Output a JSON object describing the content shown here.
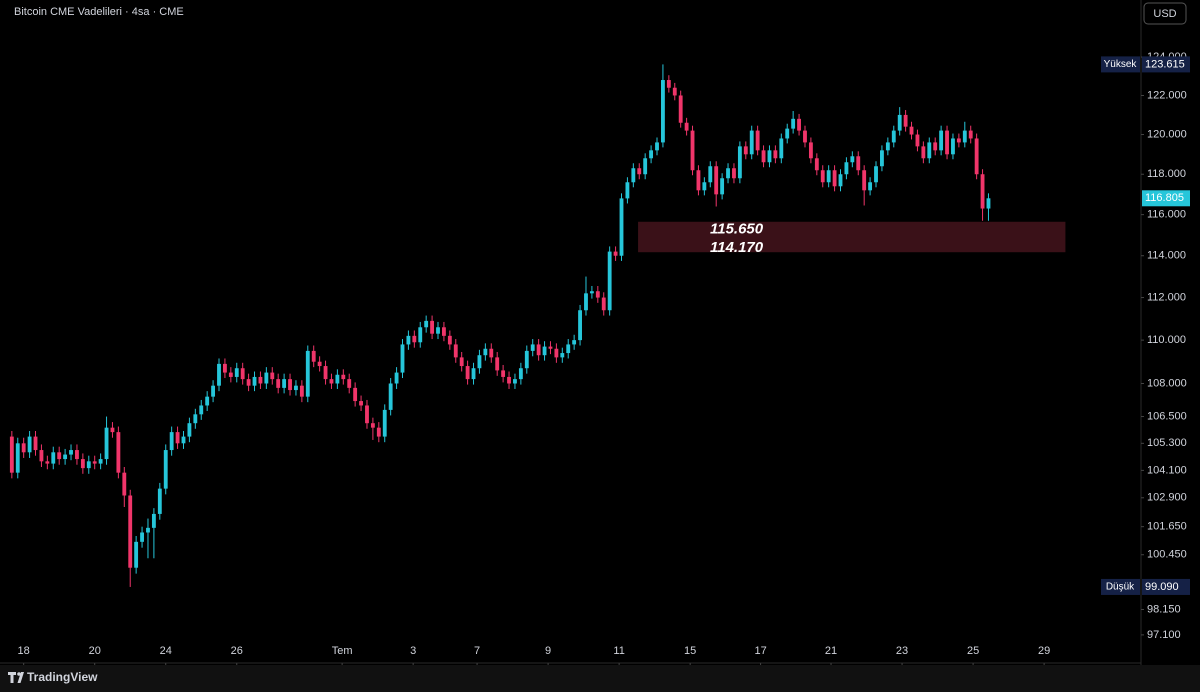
{
  "chart_data": {
    "type": "candlestick",
    "title": "Bitcoin CME Vadelileri · 4sa · CME",
    "currency": "USD",
    "brand": "TradingView",
    "log_scale": true,
    "grid": false,
    "up_color": "#26c6da",
    "down_color": "#f0356a",
    "ylim": [
      96890,
      127030
    ],
    "yticks": [
      {
        "value": 97100,
        "label": "97.100"
      },
      {
        "value": 98150,
        "label": "98.150"
      },
      {
        "value": 100450,
        "label": "100.450"
      },
      {
        "value": 101650,
        "label": "101.650"
      },
      {
        "value": 102900,
        "label": "102.900"
      },
      {
        "value": 104100,
        "label": "104.100"
      },
      {
        "value": 105300,
        "label": "105.300"
      },
      {
        "value": 106500,
        "label": "106.500"
      },
      {
        "value": 108000,
        "label": "108.000"
      },
      {
        "value": 110000,
        "label": "110.000"
      },
      {
        "value": 112000,
        "label": "112.000"
      },
      {
        "value": 114000,
        "label": "114.000"
      },
      {
        "value": 116000,
        "label": "116.000"
      },
      {
        "value": 118000,
        "label": "118.000"
      },
      {
        "value": 120000,
        "label": "120.000"
      },
      {
        "value": 122000,
        "label": "122.000"
      },
      {
        "value": 124000,
        "label": "124.000"
      }
    ],
    "xlim": [
      -2,
      190.6
    ],
    "xticks": [
      {
        "value": 2,
        "label": "18"
      },
      {
        "value": 14,
        "label": "20"
      },
      {
        "value": 26,
        "label": "24"
      },
      {
        "value": 38,
        "label": "26"
      },
      {
        "value": 55.8,
        "label": "Tem"
      },
      {
        "value": 67.8,
        "label": "3"
      },
      {
        "value": 78.6,
        "label": "7"
      },
      {
        "value": 90.6,
        "label": "9"
      },
      {
        "value": 102.6,
        "label": "11"
      },
      {
        "value": 114.6,
        "label": "15"
      },
      {
        "value": 126.5,
        "label": "17"
      },
      {
        "value": 138.4,
        "label": "21"
      },
      {
        "value": 150.4,
        "label": "23"
      },
      {
        "value": 162.4,
        "label": "25"
      },
      {
        "value": 174.4,
        "label": "29"
      }
    ],
    "high": {
      "label": "Yüksek",
      "value": 123615,
      "value_label": "123.615"
    },
    "low": {
      "label": "Düşük",
      "value": 99090,
      "value_label": "99.090"
    },
    "last": {
      "value": 116805,
      "value_label": "116.805"
    },
    "zone": {
      "top": 115650,
      "bottom": 114170,
      "x_range": [
        105.8,
        178
      ],
      "top_label": "115.650",
      "bottom_label": "114.170",
      "color": "#3a1118"
    },
    "candles": [
      [
        105600,
        105850,
        103750,
        104000
      ],
      [
        104000,
        105550,
        103750,
        105300
      ],
      [
        105300,
        105550,
        104650,
        104900
      ],
      [
        104900,
        105850,
        104650,
        105600
      ],
      [
        105600,
        105850,
        104750,
        105000
      ],
      [
        105000,
        105250,
        104250,
        104500
      ],
      [
        104500,
        104750,
        104150,
        104400
      ],
      [
        104400,
        105150,
        104150,
        104900
      ],
      [
        104900,
        105150,
        104350,
        104600
      ],
      [
        104600,
        105050,
        104350,
        104800
      ],
      [
        104800,
        105250,
        104550,
        105000
      ],
      [
        105000,
        105250,
        104350,
        104600
      ],
      [
        104600,
        104850,
        103950,
        104200
      ],
      [
        104200,
        104750,
        103950,
        104500
      ],
      [
        104500,
        104750,
        104150,
        104400
      ],
      [
        104400,
        104850,
        104150,
        104600
      ],
      [
        104600,
        106500,
        104350,
        106000
      ],
      [
        106000,
        106250,
        105550,
        105800
      ],
      [
        105800,
        106050,
        103750,
        104000
      ],
      [
        104000,
        104250,
        102500,
        103000
      ],
      [
        103000,
        103250,
        99090,
        99900
      ],
      [
        99900,
        101250,
        99650,
        101000
      ],
      [
        101000,
        101650,
        100750,
        101400
      ],
      [
        101400,
        102000,
        100300,
        101600
      ],
      [
        101600,
        102450,
        100300,
        102200
      ],
      [
        102200,
        103550,
        101950,
        103300
      ],
      [
        103300,
        105250,
        103050,
        105000
      ],
      [
        105000,
        106050,
        104750,
        105800
      ],
      [
        105800,
        106050,
        105050,
        105300
      ],
      [
        105300,
        105850,
        105050,
        105600
      ],
      [
        105600,
        106450,
        105350,
        106200
      ],
      [
        106200,
        106850,
        105950,
        106600
      ],
      [
        106600,
        107250,
        106350,
        107000
      ],
      [
        107000,
        107650,
        106750,
        107400
      ],
      [
        107400,
        108150,
        107150,
        107900
      ],
      [
        107900,
        109150,
        107650,
        108900
      ],
      [
        108900,
        109150,
        108250,
        108500
      ],
      [
        108500,
        108750,
        108050,
        108300
      ],
      [
        108300,
        108950,
        108050,
        108700
      ],
      [
        108700,
        108950,
        107950,
        108200
      ],
      [
        108200,
        108450,
        107650,
        107900
      ],
      [
        107900,
        108550,
        107650,
        108300
      ],
      [
        108300,
        108550,
        107750,
        108000
      ],
      [
        108000,
        108750,
        107750,
        108500
      ],
      [
        108500,
        108750,
        107950,
        108200
      ],
      [
        108200,
        108450,
        107550,
        107800
      ],
      [
        107800,
        108450,
        107550,
        108200
      ],
      [
        108200,
        108450,
        107450,
        107700
      ],
      [
        107700,
        108150,
        107450,
        107900
      ],
      [
        107900,
        108150,
        107150,
        107400
      ],
      [
        107400,
        109750,
        107150,
        109500
      ],
      [
        109500,
        109750,
        108750,
        109000
      ],
      [
        109000,
        109250,
        108550,
        108800
      ],
      [
        108800,
        109050,
        107950,
        108200
      ],
      [
        108200,
        108450,
        107750,
        108000
      ],
      [
        108000,
        108650,
        107750,
        108400
      ],
      [
        108400,
        108650,
        107950,
        108200
      ],
      [
        108200,
        108450,
        107550,
        107800
      ],
      [
        107800,
        108050,
        106950,
        107200
      ],
      [
        107200,
        107450,
        106750,
        107000
      ],
      [
        107000,
        107250,
        105950,
        106200
      ],
      [
        106200,
        106450,
        105450,
        106000
      ],
      [
        106000,
        106250,
        105350,
        105600
      ],
      [
        105600,
        107050,
        105350,
        106800
      ],
      [
        106800,
        108250,
        106550,
        108000
      ],
      [
        108000,
        108750,
        107750,
        108500
      ],
      [
        108500,
        110050,
        108250,
        109800
      ],
      [
        109800,
        110450,
        109550,
        110200
      ],
      [
        110200,
        110450,
        109650,
        109900
      ],
      [
        109900,
        110850,
        109650,
        110600
      ],
      [
        110600,
        111150,
        110350,
        110900
      ],
      [
        110900,
        111150,
        110050,
        110300
      ],
      [
        110300,
        110850,
        110050,
        110600
      ],
      [
        110600,
        110850,
        109950,
        110200
      ],
      [
        110200,
        110450,
        109550,
        109800
      ],
      [
        109800,
        110050,
        108950,
        109200
      ],
      [
        109200,
        109450,
        108550,
        108800
      ],
      [
        108800,
        109050,
        107950,
        108200
      ],
      [
        108200,
        108950,
        107950,
        108700
      ],
      [
        108700,
        109550,
        108450,
        109300
      ],
      [
        109300,
        109850,
        109050,
        109600
      ],
      [
        109600,
        109850,
        108950,
        109200
      ],
      [
        109200,
        109450,
        108350,
        108600
      ],
      [
        108600,
        108850,
        108050,
        108300
      ],
      [
        108300,
        108550,
        107750,
        108000
      ],
      [
        108000,
        108450,
        107750,
        108200
      ],
      [
        108200,
        108950,
        107950,
        108700
      ],
      [
        108700,
        109750,
        108450,
        109500
      ],
      [
        109500,
        110050,
        109250,
        109800
      ],
      [
        109800,
        110050,
        109050,
        109300
      ],
      [
        109300,
        109950,
        109050,
        109700
      ],
      [
        109700,
        109950,
        109350,
        109600
      ],
      [
        109600,
        109850,
        108950,
        109200
      ],
      [
        109200,
        109650,
        108950,
        109400
      ],
      [
        109400,
        110050,
        109150,
        109800
      ],
      [
        109800,
        110250,
        109550,
        110000
      ],
      [
        110000,
        111650,
        109750,
        111400
      ],
      [
        111400,
        113000,
        111150,
        112200
      ],
      [
        112200,
        112550,
        111950,
        112300
      ],
      [
        112300,
        112550,
        111750,
        112000
      ],
      [
        112000,
        112250,
        111150,
        111400
      ],
      [
        111400,
        114450,
        111150,
        114200
      ],
      [
        114200,
        114450,
        113750,
        114000
      ],
      [
        114000,
        117050,
        113750,
        116800
      ],
      [
        116800,
        117850,
        116550,
        117600
      ],
      [
        117600,
        118550,
        117350,
        118300
      ],
      [
        118300,
        118550,
        117750,
        118000
      ],
      [
        118000,
        119050,
        117750,
        118800
      ],
      [
        118800,
        119450,
        118550,
        119200
      ],
      [
        119200,
        119850,
        118950,
        119600
      ],
      [
        119600,
        123615,
        119350,
        122800
      ],
      [
        122800,
        123050,
        122150,
        122400
      ],
      [
        122400,
        122650,
        121750,
        122000
      ],
      [
        122000,
        122250,
        120350,
        120600
      ],
      [
        120600,
        120850,
        119950,
        120200
      ],
      [
        120200,
        120450,
        117950,
        118200
      ],
      [
        118200,
        118450,
        116950,
        117200
      ],
      [
        117200,
        117850,
        116950,
        117600
      ],
      [
        117600,
        118650,
        117350,
        118400
      ],
      [
        118400,
        118650,
        116400,
        117000
      ],
      [
        117000,
        118050,
        116750,
        117800
      ],
      [
        117800,
        118550,
        117550,
        118300
      ],
      [
        118300,
        118550,
        117550,
        117800
      ],
      [
        117800,
        119650,
        117550,
        119400
      ],
      [
        119400,
        119650,
        118750,
        119000
      ],
      [
        119000,
        120450,
        118750,
        120200
      ],
      [
        120200,
        120450,
        118950,
        119200
      ],
      [
        119200,
        119450,
        118350,
        118600
      ],
      [
        118600,
        119450,
        118350,
        119200
      ],
      [
        119200,
        119450,
        118550,
        118800
      ],
      [
        118800,
        120050,
        118550,
        119800
      ],
      [
        119800,
        120550,
        119550,
        120300
      ],
      [
        120300,
        121200,
        120050,
        120800
      ],
      [
        120800,
        121050,
        119950,
        120200
      ],
      [
        120200,
        120450,
        119350,
        119600
      ],
      [
        119600,
        119850,
        118550,
        118800
      ],
      [
        118800,
        119050,
        117950,
        118200
      ],
      [
        118200,
        118450,
        117350,
        117600
      ],
      [
        117600,
        118450,
        117350,
        118200
      ],
      [
        118200,
        118450,
        117150,
        117400
      ],
      [
        117400,
        118250,
        117150,
        118000
      ],
      [
        118000,
        118850,
        117750,
        118600
      ],
      [
        118600,
        119150,
        118350,
        118900
      ],
      [
        118900,
        119150,
        117950,
        118200
      ],
      [
        118200,
        118450,
        116450,
        117200
      ],
      [
        117200,
        117850,
        116950,
        117600
      ],
      [
        117600,
        118650,
        117350,
        118400
      ],
      [
        118400,
        119450,
        118150,
        119200
      ],
      [
        119200,
        119850,
        118950,
        119600
      ],
      [
        119600,
        120450,
        119350,
        120200
      ],
      [
        120200,
        121400,
        119950,
        121000
      ],
      [
        121000,
        121250,
        120150,
        120400
      ],
      [
        120400,
        120650,
        119750,
        120000
      ],
      [
        120000,
        120250,
        119150,
        119400
      ],
      [
        119400,
        119650,
        118550,
        118800
      ],
      [
        118800,
        119850,
        118550,
        119600
      ],
      [
        119600,
        119850,
        118950,
        119200
      ],
      [
        119200,
        120450,
        118950,
        120200
      ],
      [
        120200,
        120450,
        118750,
        119000
      ],
      [
        119000,
        120050,
        118750,
        119800
      ],
      [
        119800,
        120050,
        119350,
        119600
      ],
      [
        119600,
        120650,
        119350,
        120200
      ],
      [
        120200,
        120450,
        119550,
        119800
      ],
      [
        119800,
        120050,
        117750,
        118000
      ],
      [
        118000,
        118250,
        115700,
        116300
      ],
      [
        116300,
        117050,
        115700,
        116805
      ]
    ]
  }
}
